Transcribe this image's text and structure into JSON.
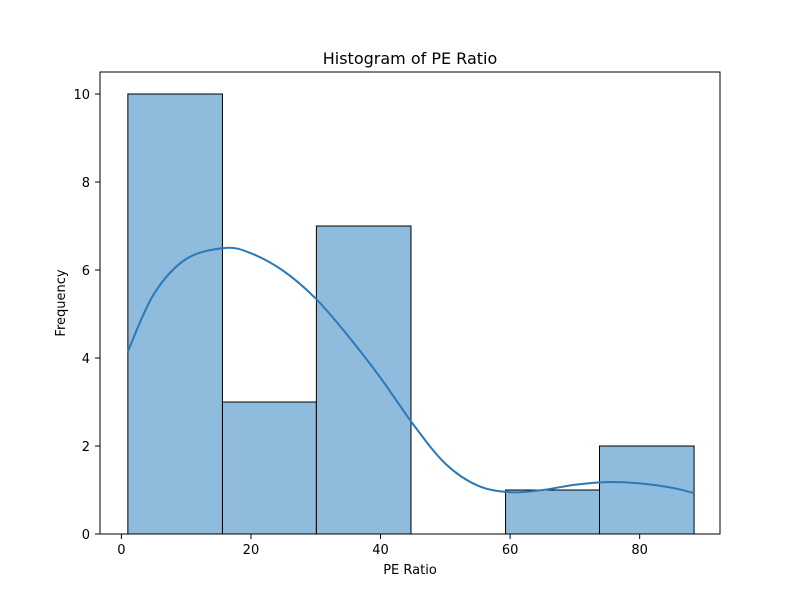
{
  "chart_data": {
    "type": "bar",
    "title": "Histogram of PE Ratio",
    "xlabel": "PE Ratio",
    "ylabel": "Frequency",
    "xlim": [
      -3.3,
      92.4
    ],
    "ylim": [
      0,
      10.5
    ],
    "xticks": [
      0,
      20,
      40,
      60,
      80
    ],
    "yticks": [
      0,
      2,
      4,
      6,
      8,
      10
    ],
    "bins": [
      {
        "start": 1.0,
        "end": 15.6,
        "count": 10
      },
      {
        "start": 15.6,
        "end": 30.1,
        "count": 3
      },
      {
        "start": 30.1,
        "end": 44.7,
        "count": 7
      },
      {
        "start": 44.7,
        "end": 59.3,
        "count": 0
      },
      {
        "start": 59.3,
        "end": 73.8,
        "count": 1
      },
      {
        "start": 73.8,
        "end": 88.4,
        "count": 2
      }
    ],
    "kde": {
      "x": [
        1.0,
        5,
        10,
        16,
        20,
        25,
        30,
        35,
        40,
        45,
        50,
        55,
        60,
        65,
        70,
        75,
        80,
        85,
        88.4
      ],
      "y": [
        4.15,
        5.45,
        6.25,
        6.5,
        6.38,
        5.98,
        5.35,
        4.5,
        3.55,
        2.5,
        1.6,
        1.1,
        0.95,
        1.0,
        1.12,
        1.18,
        1.15,
        1.05,
        0.93
      ]
    },
    "colors": {
      "bar_fill": "#8fbbdc",
      "bar_edge": "#000000",
      "kde_line": "#2a7ab8"
    },
    "grid": false,
    "legend": "none"
  }
}
